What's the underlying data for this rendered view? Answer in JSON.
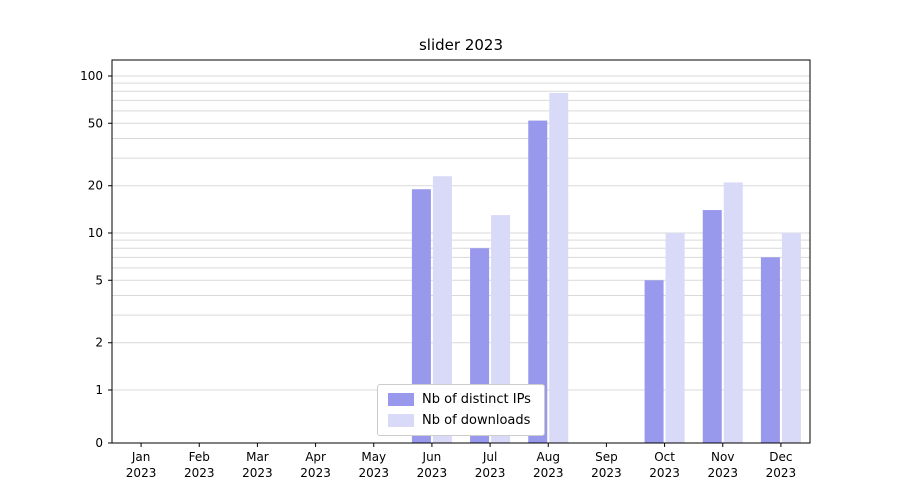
{
  "chart_data": {
    "type": "bar",
    "title": "slider 2023",
    "scale": "symlog",
    "grid": true,
    "legend_position": "bottom-center",
    "categories": [
      "Jan",
      "Feb",
      "Mar",
      "Apr",
      "May",
      "Jun",
      "Jul",
      "Aug",
      "Sep",
      "Oct",
      "Nov",
      "Dec"
    ],
    "year": "2023",
    "yticks": [
      0,
      1,
      2,
      5,
      10,
      20,
      50,
      100
    ],
    "ylim": [
      0,
      126
    ],
    "series": [
      {
        "name": "Nb of distinct IPs",
        "color": "#9898ec",
        "values": [
          0,
          0,
          0,
          0,
          0,
          19,
          8,
          52,
          0,
          5,
          14,
          7
        ]
      },
      {
        "name": "Nb of downloads",
        "color": "#d9d9f8",
        "values": [
          0,
          0,
          0,
          0,
          0,
          23,
          13,
          78,
          0,
          10,
          21,
          10
        ]
      }
    ],
    "colors": {
      "grid": "#d9d9d9",
      "axis": "#000000",
      "legend_border": "#cccccc"
    }
  }
}
